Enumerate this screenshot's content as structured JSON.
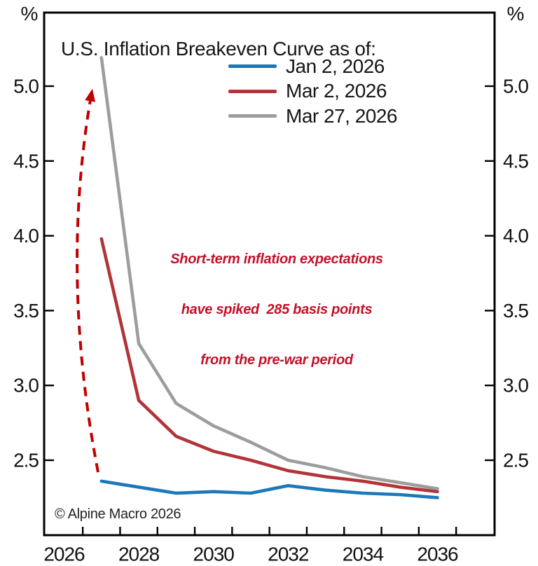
{
  "figure": {
    "title": "U.S. Inflation Breakeven Curve as of:",
    "y_axis_unit_left": "%",
    "y_axis_unit_right": "%",
    "copyright": "© Alpine Macro 2026"
  },
  "legend": {
    "items": [
      {
        "label": "Jan 2, 2026"
      },
      {
        "label": "Mar 2, 2026"
      },
      {
        "label": "Mar 27, 2026"
      }
    ]
  },
  "annotation": {
    "line1": "Short-term inflation expectations",
    "line2": "have spiked  285 basis points",
    "line3": "from the pre-war period",
    "color": "#c11228"
  },
  "chart_data": {
    "type": "line",
    "title": "U.S. Inflation Breakeven Curve as of:",
    "xlabel": "",
    "ylabel": "%",
    "x": [
      2027,
      2028,
      2029,
      2030,
      2031,
      2032,
      2033,
      2034,
      2035,
      2036
    ],
    "series": [
      {
        "name": "Jan 2, 2026",
        "color": "#1b78b9",
        "values": [
          2.36,
          2.32,
          2.28,
          2.29,
          2.28,
          2.33,
          2.3,
          2.28,
          2.27,
          2.25
        ]
      },
      {
        "name": "Mar 2, 2026",
        "color": "#b13438",
        "values": [
          3.98,
          2.9,
          2.66,
          2.56,
          2.5,
          2.43,
          2.39,
          2.36,
          2.32,
          2.29
        ]
      },
      {
        "name": "Mar 27, 2026",
        "color": "#9d9d9d",
        "values": [
          5.19,
          3.28,
          2.88,
          2.73,
          2.62,
          2.5,
          2.45,
          2.39,
          2.35,
          2.31
        ]
      }
    ],
    "ylim": [
      2.0,
      5.5
    ],
    "xlim": [
      2025.5,
      2037.6
    ],
    "y_ticks": [
      5.0,
      4.5,
      4.0,
      3.5,
      3.0,
      2.5
    ],
    "y_tick_labels": [
      "5.0",
      "4.5",
      "4.0",
      "3.5",
      "3.0",
      "2.5"
    ],
    "y_ticks_both_sides": true,
    "x_tick_label_years": [
      2026,
      2028,
      2030,
      2032,
      2034,
      2036
    ],
    "x_minor_tick_years": [
      2026.5,
      2027.5,
      2028.5,
      2029.5,
      2030.5,
      2031.5,
      2032.5,
      2033.5,
      2034.5,
      2035.5,
      2036.5
    ],
    "grid": false,
    "legend_position": "upper center",
    "annotation_arrow": {
      "description": "dashed curved arrow showing spike from pre-war short-term breakeven to current",
      "from": {
        "x": 2026.91,
        "value": 2.42
      },
      "control": {
        "x": 2025.88,
        "value": 3.75
      },
      "to": {
        "x": 2026.74,
        "value": 4.96
      },
      "color": "#c00000",
      "dashed": true
    }
  }
}
